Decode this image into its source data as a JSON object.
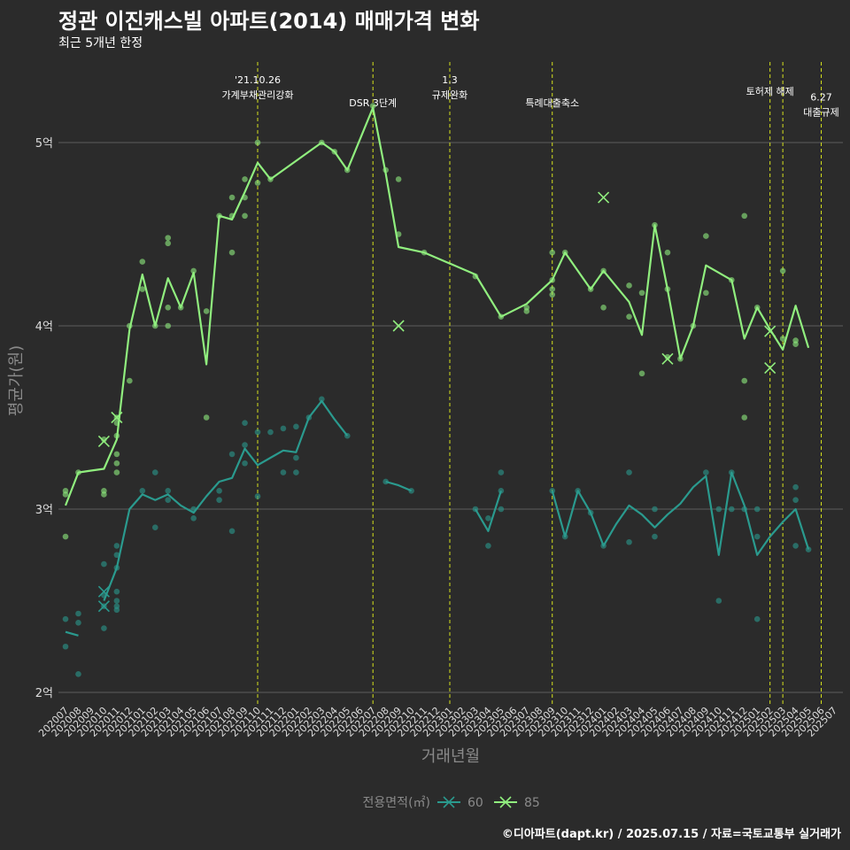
{
  "title": "정관 이진캐스빌 아파트(2014) 매매가격 변화",
  "subtitle": "최근 5개년 한정",
  "caption": "©디아파트(dapt.kr) / 2025.07.15 / 자료=국토교통부 실거래가",
  "chart_data": {
    "type": "line",
    "xlabel": "거래년월",
    "ylabel": "평균가(원)",
    "ylim": [
      1.95,
      5.5
    ],
    "y_ticks": [
      {
        "value": 2,
        "label": "2억"
      },
      {
        "value": 3,
        "label": "3억"
      },
      {
        "value": 4,
        "label": "4억"
      },
      {
        "value": 5,
        "label": "5억"
      }
    ],
    "categories": [
      "202007",
      "202008",
      "202009",
      "202010",
      "202011",
      "202012",
      "202101",
      "202102",
      "202103",
      "202104",
      "202105",
      "202106",
      "202107",
      "202108",
      "202109",
      "202110",
      "202111",
      "202112",
      "202201",
      "202202",
      "202203",
      "202204",
      "202205",
      "202206",
      "202207",
      "202208",
      "202209",
      "202210",
      "202211",
      "202212",
      "202301",
      "202302",
      "202303",
      "202304",
      "202305",
      "202306",
      "202307",
      "202308",
      "202309",
      "202310",
      "202311",
      "202312",
      "202401",
      "202402",
      "202403",
      "202404",
      "202405",
      "202406",
      "202407",
      "202408",
      "202409",
      "202410",
      "202411",
      "202412",
      "202501",
      "202502",
      "202503",
      "202504",
      "202505",
      "202506",
      "202507"
    ],
    "legend": {
      "title": "전용면적(㎡)",
      "position": "bottom"
    },
    "grid": true,
    "series": [
      {
        "name": "60",
        "color": "#2a9a8e",
        "line": [
          [
            0,
            2.33
          ],
          [
            1,
            2.31
          ],
          null,
          [
            3,
            2.5
          ],
          [
            4,
            2.68
          ],
          [
            5,
            3.0
          ],
          [
            6,
            3.08
          ],
          [
            7,
            3.05
          ],
          [
            8,
            3.08
          ],
          [
            9,
            3.02
          ],
          [
            10,
            2.98
          ],
          [
            11,
            3.07
          ],
          [
            12,
            3.15
          ],
          [
            13,
            3.17
          ],
          [
            14,
            3.33
          ],
          [
            15,
            3.24
          ],
          [
            16,
            3.28
          ],
          [
            17,
            3.32
          ],
          [
            18,
            3.31
          ],
          [
            19,
            3.5
          ],
          [
            20,
            3.59
          ],
          [
            21,
            3.49
          ],
          [
            22,
            3.4
          ],
          null,
          [
            25,
            3.15
          ],
          [
            26,
            3.13
          ],
          [
            27,
            3.1
          ],
          null,
          [
            32,
            3.0
          ],
          [
            33,
            2.88
          ],
          [
            34,
            3.1
          ],
          null,
          [
            38,
            3.1
          ],
          [
            39,
            2.85
          ],
          [
            40,
            3.1
          ],
          [
            41,
            2.98
          ],
          [
            42,
            2.8
          ],
          [
            43,
            2.92
          ],
          [
            44,
            3.02
          ],
          [
            45,
            2.97
          ],
          [
            46,
            2.9
          ],
          [
            47,
            2.97
          ],
          [
            48,
            3.03
          ],
          [
            49,
            3.12
          ],
          [
            50,
            3.18
          ],
          [
            51,
            2.75
          ],
          [
            52,
            3.2
          ],
          [
            53,
            3.02
          ],
          [
            54,
            2.75
          ],
          [
            55,
            2.85
          ],
          [
            56,
            2.93
          ],
          [
            57,
            3.0
          ],
          [
            58,
            2.78
          ]
        ],
        "points": [
          [
            0,
            2.4
          ],
          [
            0,
            2.25
          ],
          [
            1,
            2.43
          ],
          [
            1,
            2.38
          ],
          [
            1,
            2.1
          ],
          [
            3,
            2.7
          ],
          [
            3,
            2.53
          ],
          [
            3,
            2.47
          ],
          [
            3,
            2.35
          ],
          [
            4,
            2.8
          ],
          [
            4,
            2.75
          ],
          [
            4,
            2.68
          ],
          [
            4,
            2.55
          ],
          [
            4,
            2.5
          ],
          [
            4,
            2.47
          ],
          [
            4,
            2.45
          ],
          [
            6,
            3.1
          ],
          [
            7,
            3.2
          ],
          [
            7,
            2.9
          ],
          [
            8,
            3.1
          ],
          [
            8,
            3.05
          ],
          [
            10,
            3.0
          ],
          [
            10,
            2.95
          ],
          [
            12,
            3.1
          ],
          [
            12,
            3.05
          ],
          [
            13,
            3.3
          ],
          [
            13,
            2.88
          ],
          [
            14,
            3.47
          ],
          [
            14,
            3.35
          ],
          [
            14,
            3.25
          ],
          [
            15,
            3.42
          ],
          [
            15,
            3.07
          ],
          [
            16,
            3.42
          ],
          [
            17,
            3.44
          ],
          [
            17,
            3.2
          ],
          [
            18,
            3.45
          ],
          [
            18,
            3.28
          ],
          [
            18,
            3.2
          ],
          [
            19,
            3.5
          ],
          [
            20,
            3.6
          ],
          [
            22,
            3.4
          ],
          [
            25,
            3.15
          ],
          [
            27,
            3.1
          ],
          [
            32,
            3.0
          ],
          [
            33,
            2.95
          ],
          [
            33,
            2.8
          ],
          [
            34,
            3.2
          ],
          [
            34,
            3.1
          ],
          [
            34,
            3.0
          ],
          [
            38,
            3.1
          ],
          [
            39,
            2.85
          ],
          [
            40,
            3.1
          ],
          [
            41,
            2.98
          ],
          [
            42,
            2.8
          ],
          [
            44,
            3.2
          ],
          [
            44,
            2.82
          ],
          [
            46,
            3.0
          ],
          [
            46,
            2.85
          ],
          [
            50,
            3.2
          ],
          [
            51,
            3.0
          ],
          [
            51,
            2.5
          ],
          [
            52,
            3.2
          ],
          [
            52,
            3.0
          ],
          [
            53,
            3.0
          ],
          [
            54,
            3.0
          ],
          [
            54,
            2.85
          ],
          [
            54,
            2.4
          ],
          [
            57,
            3.12
          ],
          [
            57,
            3.05
          ],
          [
            57,
            2.8
          ],
          [
            58,
            2.78
          ]
        ],
        "markers_x": [
          [
            3,
            2.55
          ],
          [
            3,
            2.47
          ]
        ]
      },
      {
        "name": "85",
        "color": "#90ee7e",
        "line": [
          [
            0,
            3.02
          ],
          [
            1,
            3.2
          ],
          [
            2,
            3.21
          ],
          [
            3,
            3.22
          ],
          [
            4,
            3.38
          ],
          [
            5,
            3.98
          ],
          [
            6,
            4.28
          ],
          [
            7,
            4.0
          ],
          [
            8,
            4.26
          ],
          [
            9,
            4.1
          ],
          [
            10,
            4.29
          ],
          [
            11,
            3.79
          ],
          [
            12,
            4.6
          ],
          [
            13,
            4.58
          ],
          [
            14,
            4.73
          ],
          [
            15,
            4.89
          ],
          [
            16,
            4.8
          ],
          [
            20,
            5.0
          ],
          [
            21,
            4.95
          ],
          [
            22,
            4.85
          ],
          [
            24,
            5.19
          ],
          [
            25,
            4.83
          ],
          [
            26,
            4.43
          ],
          [
            28,
            4.4
          ],
          [
            32,
            4.28
          ],
          [
            34,
            4.05
          ],
          [
            36,
            4.12
          ],
          [
            38,
            4.25
          ],
          [
            39,
            4.4
          ],
          [
            41,
            4.2
          ],
          [
            42,
            4.3
          ],
          [
            44,
            4.13
          ],
          [
            45,
            3.95
          ],
          [
            46,
            4.55
          ],
          [
            47,
            4.2
          ],
          [
            48,
            3.82
          ],
          [
            49,
            4.0
          ],
          [
            50,
            4.33
          ],
          [
            52,
            4.25
          ],
          [
            53,
            3.93
          ],
          [
            54,
            4.1
          ],
          [
            55,
            3.98
          ],
          [
            56,
            3.87
          ],
          [
            57,
            4.11
          ],
          [
            58,
            3.88
          ]
        ],
        "points": [
          [
            0,
            3.1
          ],
          [
            0,
            3.08
          ],
          [
            0,
            2.85
          ],
          [
            1,
            3.2
          ],
          [
            3,
            3.38
          ],
          [
            3,
            3.1
          ],
          [
            3,
            3.08
          ],
          [
            4,
            3.5
          ],
          [
            4,
            3.47
          ],
          [
            4,
            3.4
          ],
          [
            4,
            3.3
          ],
          [
            4,
            3.25
          ],
          [
            4,
            3.2
          ],
          [
            5,
            4.0
          ],
          [
            5,
            3.7
          ],
          [
            6,
            4.35
          ],
          [
            6,
            4.2
          ],
          [
            7,
            4.0
          ],
          [
            8,
            4.48
          ],
          [
            8,
            4.45
          ],
          [
            8,
            4.1
          ],
          [
            8,
            4.0
          ],
          [
            9,
            4.1
          ],
          [
            10,
            4.3
          ],
          [
            11,
            4.08
          ],
          [
            11,
            3.5
          ],
          [
            12,
            4.6
          ],
          [
            13,
            4.7
          ],
          [
            13,
            4.6
          ],
          [
            13,
            4.4
          ],
          [
            14,
            4.8
          ],
          [
            14,
            4.7
          ],
          [
            14,
            4.6
          ],
          [
            15,
            5.0
          ],
          [
            15,
            4.78
          ],
          [
            16,
            4.8
          ],
          [
            20,
            5.0
          ],
          [
            21,
            4.95
          ],
          [
            22,
            4.85
          ],
          [
            24,
            5.2
          ],
          [
            25,
            4.85
          ],
          [
            26,
            4.8
          ],
          [
            26,
            4.5
          ],
          [
            28,
            4.4
          ],
          [
            32,
            4.27
          ],
          [
            34,
            4.05
          ],
          [
            36,
            4.1
          ],
          [
            36,
            4.08
          ],
          [
            38,
            4.4
          ],
          [
            38,
            4.25
          ],
          [
            38,
            4.2
          ],
          [
            38,
            4.17
          ],
          [
            39,
            4.4
          ],
          [
            41,
            4.2
          ],
          [
            42,
            4.3
          ],
          [
            42,
            4.1
          ],
          [
            44,
            4.22
          ],
          [
            44,
            4.05
          ],
          [
            45,
            4.18
          ],
          [
            45,
            3.74
          ],
          [
            46,
            4.55
          ],
          [
            47,
            4.4
          ],
          [
            47,
            4.2
          ],
          [
            47,
            3.83
          ],
          [
            48,
            3.82
          ],
          [
            49,
            4.0
          ],
          [
            50,
            4.49
          ],
          [
            50,
            4.18
          ],
          [
            52,
            4.25
          ],
          [
            53,
            4.6
          ],
          [
            53,
            3.7
          ],
          [
            53,
            3.5
          ],
          [
            54,
            4.1
          ],
          [
            56,
            4.3
          ],
          [
            56,
            3.93
          ],
          [
            57,
            3.92
          ],
          [
            57,
            3.9
          ]
        ],
        "markers_x": [
          [
            3,
            3.37
          ],
          [
            4,
            3.5
          ],
          [
            26,
            4.0
          ],
          [
            42,
            4.7
          ],
          [
            47,
            3.82
          ],
          [
            55,
            3.97
          ],
          [
            55,
            3.77
          ]
        ]
      }
    ],
    "events": [
      {
        "x": 15,
        "label": "'21.10.26\n가계부채관리강화",
        "row": 0
      },
      {
        "x": 24,
        "label": "DSR 3단계",
        "row": 2
      },
      {
        "x": 30,
        "label": "1.3\n규제완화",
        "row": 0
      },
      {
        "x": 38,
        "label": "특례대출축소",
        "row": 2
      },
      {
        "x": 55,
        "label": "토허제 해제",
        "row": 1
      },
      {
        "x": 56,
        "label": "",
        "row": 0
      },
      {
        "x": 59,
        "label": "6.27\n대출규제",
        "row": 1.5
      }
    ]
  }
}
